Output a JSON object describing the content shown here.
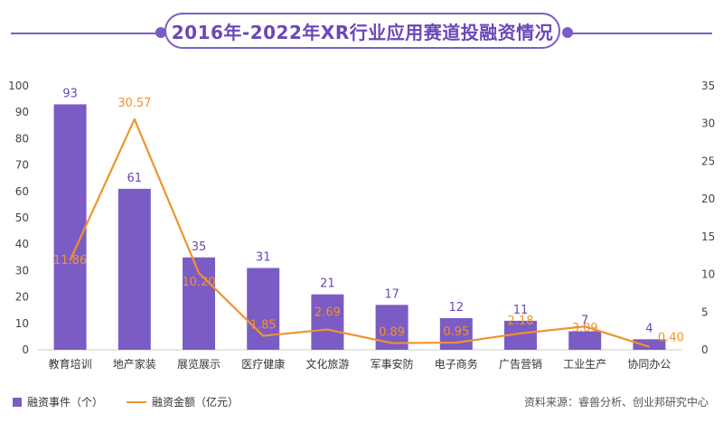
{
  "title": "2016年-2022年XR行业应用赛道投融资情况",
  "legend": {
    "bar_label": "融资事件（个）",
    "line_label": "融资金额（亿元）"
  },
  "source": "资料来源：睿兽分析、创业邦研究中心",
  "colors": {
    "bar": "#7b5cc4",
    "line": "#f0932b",
    "accent": "#6a48b8"
  },
  "chart_data": {
    "type": "bar",
    "categories": [
      "教育培训",
      "地产家装",
      "展览展示",
      "医疗健康",
      "文化旅游",
      "军事安防",
      "电子商务",
      "广告营销",
      "工业生产",
      "协同办公"
    ],
    "series": [
      {
        "name": "融资事件（个）",
        "type": "bar",
        "axis": "left",
        "values": [
          93,
          61,
          35,
          31,
          21,
          17,
          12,
          11,
          7,
          4
        ]
      },
      {
        "name": "融资金额（亿元）",
        "type": "line",
        "axis": "right",
        "values": [
          11.86,
          30.57,
          10.2,
          1.85,
          2.69,
          0.89,
          0.95,
          2.18,
          3.09,
          0.4
        ]
      }
    ],
    "bar_labels": [
      "93",
      "61",
      "35",
      "31",
      "21",
      "17",
      "12",
      "11",
      "7",
      "4"
    ],
    "line_labels": [
      "11.86",
      "30.57",
      "10.20",
      "1.85",
      "2.69",
      "0.89",
      "0.95",
      "2.18",
      "3.09",
      "0.40"
    ],
    "y_left": {
      "lim": [
        0,
        100
      ],
      "ticks": [
        0,
        10,
        20,
        30,
        40,
        50,
        60,
        70,
        80,
        90,
        100
      ]
    },
    "y_right": {
      "lim": [
        0,
        35
      ],
      "ticks": [
        0,
        5,
        10,
        15,
        20,
        25,
        30,
        35
      ]
    },
    "grid": false,
    "legend_position": "bottom-left"
  }
}
